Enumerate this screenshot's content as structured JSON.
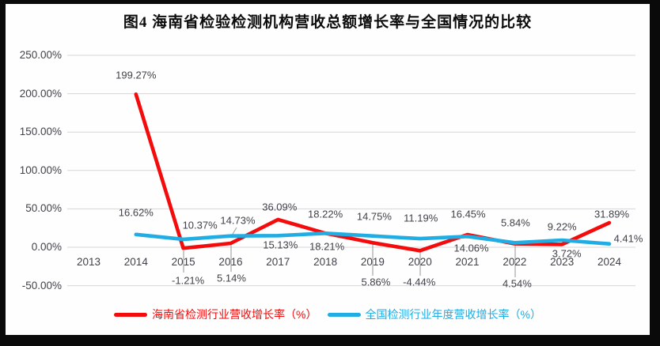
{
  "title": "图4 海南省检验检测机构营收总额增长率与全国情况的比较",
  "colors": {
    "frame": "#0a0a0a",
    "panel": "#fefefe",
    "gridline": "#d6d6d6",
    "leader_line": "#a6a6a6",
    "axis_text": "#41414a",
    "hainan_red": "#f40b0b",
    "national_blue": "#1fadе4"
  },
  "chart_data": {
    "type": "line",
    "title": "图4 海南省检验检测机构营收总额增长率与全国情况的比较",
    "categories": [
      "2013",
      "2014",
      "2015",
      "2016",
      "2017",
      "2018",
      "2019",
      "2020",
      "2021",
      "2022",
      "2023",
      "2024"
    ],
    "y_axis": {
      "ticks": [
        250,
        200,
        150,
        100,
        50,
        0,
        -50
      ],
      "tick_format": "0.00%",
      "ylim": [
        -50,
        250
      ],
      "grid": true
    },
    "legend_position": "bottom",
    "series": [
      {
        "name": "海南省检测行业营收增长率（%）",
        "color": "#f40b0b",
        "values": [
          null,
          199.27,
          -1.21,
          5.14,
          36.09,
          18.21,
          5.86,
          -4.44,
          16.45,
          4.54,
          3.72,
          31.89
        ],
        "label_offsets": [
          null,
          [
            0,
            -24
          ],
          [
            6,
            41
          ],
          [
            1,
            44
          ],
          [
            2,
            -16
          ],
          [
            2,
            17
          ],
          [
            4,
            50
          ],
          [
            -1,
            40
          ],
          [
            1,
            -26
          ],
          [
            3,
            50
          ],
          [
            6,
            12
          ],
          [
            3,
            -11
          ]
        ]
      },
      {
        "name": "全国检测行业年度营收增长率（%）",
        "color": "#1fade4",
        "values": [
          null,
          16.62,
          10.37,
          14.73,
          15.13,
          18.22,
          14.75,
          11.19,
          14.06,
          5.84,
          9.22,
          4.41
        ],
        "label_offsets": [
          null,
          [
            0,
            -28
          ],
          [
            21,
            -18
          ],
          [
            9,
            -20
          ],
          [
            3,
            12
          ],
          [
            0,
            -24
          ],
          [
            2,
            -25
          ],
          [
            1,
            -26
          ],
          [
            5,
            15
          ],
          [
            1,
            -25
          ],
          [
            0,
            -17
          ],
          [
            24,
            -7
          ]
        ]
      }
    ],
    "leader_lines": [
      [
        232,
        317,
        232,
        345
      ],
      [
        292,
        310,
        292,
        344
      ],
      [
        299,
        288,
        293,
        298
      ],
      [
        471,
        309,
        471,
        349
      ],
      [
        531,
        319,
        531,
        349
      ],
      [
        651,
        311,
        651,
        351
      ]
    ]
  }
}
